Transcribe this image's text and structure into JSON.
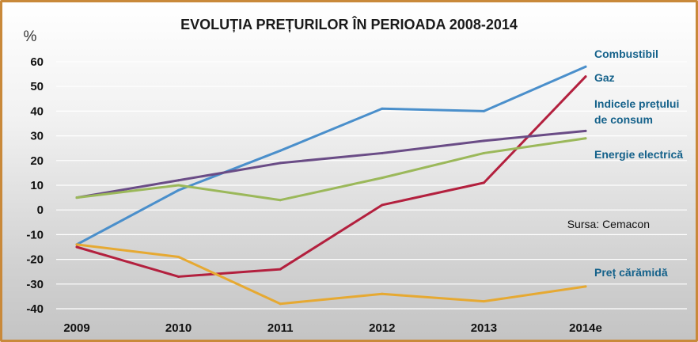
{
  "chart_data": {
    "type": "line",
    "title": "EVOLUȚIA PREȚURILOR ÎN PERIOADA 2008-2014",
    "ylabel": "%",
    "xlabel": "",
    "categories": [
      "2009",
      "2010",
      "2011",
      "2012",
      "2013",
      "2014e"
    ],
    "ylim": [
      -40,
      60
    ],
    "yticks": [
      60,
      50,
      40,
      30,
      20,
      10,
      0,
      -10,
      -20,
      -30,
      -40
    ],
    "grid": true,
    "source_note": "Sursa: Cemacon",
    "series": [
      {
        "name": "Combustibil",
        "color": "#4a8fcb",
        "values": [
          -14,
          8,
          24,
          41,
          40,
          58
        ]
      },
      {
        "name": "Gaz",
        "color": "#b3203e",
        "values": [
          -15,
          -27,
          -24,
          2,
          11,
          54
        ]
      },
      {
        "name": "Indicele prețului de consum",
        "label_lines": [
          "Indicele prețului",
          "de consum"
        ],
        "color": "#6a4c86",
        "values": [
          5,
          12,
          19,
          23,
          28,
          32
        ]
      },
      {
        "name": "Energie electrică",
        "color": "#9bb85a",
        "values": [
          5,
          10,
          4,
          13,
          23,
          29
        ]
      },
      {
        "name": "Preț cărămidă",
        "color": "#e6a932",
        "values": [
          -14,
          -19,
          -38,
          -34,
          -37,
          -31
        ]
      }
    ]
  }
}
